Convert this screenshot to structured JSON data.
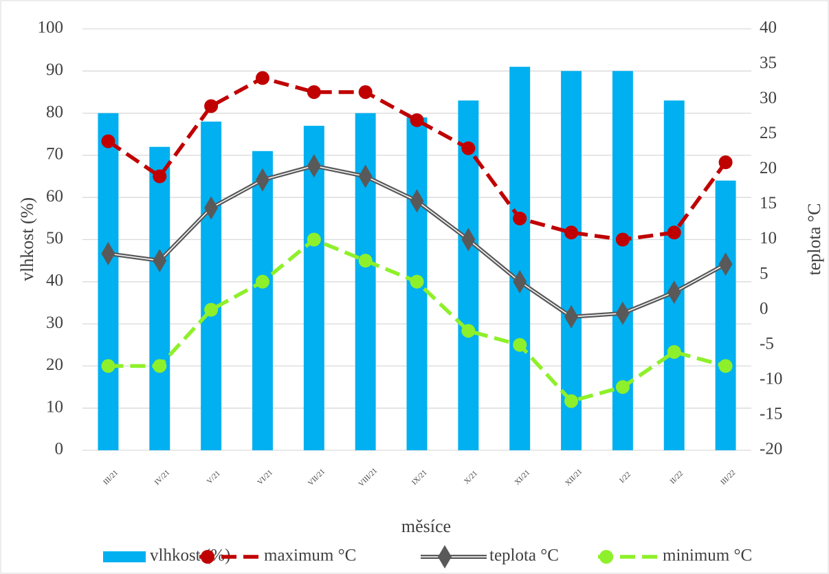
{
  "chart_data": {
    "type": "bar_line",
    "x_label": "měsíce",
    "y_label": "vlhkost (%)",
    "y2_label": "teplota °C",
    "categories": [
      "III/21",
      "IV/21",
      "V/21",
      "VI/21",
      "VII/21",
      "VIII/21",
      "IX/21",
      "X/21",
      "XI/21",
      "XII/21",
      "I/22",
      "II/22",
      "III/22"
    ],
    "series": [
      {
        "name": "vlhkost (%)",
        "type": "bar",
        "color": "#00b0f0",
        "values": [
          80,
          72,
          78,
          71,
          77,
          80,
          79,
          83,
          91,
          90,
          90,
          83,
          64
        ]
      },
      {
        "name": "maximum °C",
        "type": "line",
        "style": "dashed",
        "marker": "circle",
        "axis": "y2",
        "color": "#c00000",
        "values": [
          24,
          19,
          29,
          33,
          31,
          31,
          27,
          23,
          13,
          11,
          10,
          11,
          21
        ]
      },
      {
        "name": "teplota °C",
        "type": "line",
        "style": "double",
        "marker": "diamond",
        "axis": "y2",
        "color": "#595959",
        "values": [
          8,
          7,
          14.5,
          18.5,
          20.5,
          19,
          15.5,
          10,
          4,
          -1,
          -0.5,
          2.5,
          6.5
        ]
      },
      {
        "name": "minimum °C",
        "type": "line",
        "style": "dashed",
        "marker": "circle",
        "axis": "y2",
        "color": "#8ef02a",
        "values": [
          -8,
          -8,
          0,
          4,
          10,
          7,
          4,
          -3,
          -5,
          -13,
          -11,
          -6,
          -8
        ]
      }
    ],
    "ylim": [
      0,
      100
    ],
    "yticks": [
      0,
      10,
      20,
      30,
      40,
      50,
      60,
      70,
      80,
      90,
      100
    ],
    "y2lim": [
      -20,
      40
    ],
    "y2ticks": [
      -20,
      -15,
      -10,
      -5,
      0,
      5,
      10,
      15,
      20,
      25,
      30,
      35,
      40
    ],
    "grid": true,
    "legend": "bottom"
  }
}
